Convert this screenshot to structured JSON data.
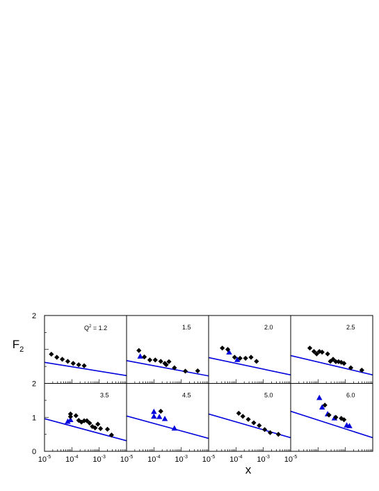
{
  "chart_data": {
    "type": "scatter",
    "layout": "2x4 grid of panels, shared log-x axis",
    "xlabel": "x",
    "ylabel": "F",
    "ylabel_subscript": "2",
    "xscale": "log",
    "xlim": [
      1e-05,
      0.01
    ],
    "ylim": [
      0,
      2
    ],
    "x_tick_labels": [
      "10",
      "10",
      "10",
      "10"
    ],
    "x_tick_exponents": [
      "-5",
      "-4",
      "-3",
      "-5"
    ],
    "y_tick_labels_top": [
      "2"
    ],
    "y_tick_labels_bottom": [
      "2",
      "1",
      "0"
    ],
    "colors": {
      "diamonds": "#000000",
      "triangles": "#0000dd",
      "curve": "#0000dd",
      "frame": "#000000"
    },
    "panels": [
      {
        "label_prefix": "Q",
        "label_sup": "2",
        "label": " = 1.2",
        "diamonds": [
          [
            1.78e-05,
            0.86
          ],
          [
            2.82e-05,
            0.77
          ],
          [
            4.47e-05,
            0.71
          ],
          [
            7.08e-05,
            0.65
          ],
          [
            0.000112,
            0.59
          ],
          [
            0.000178,
            0.55
          ],
          [
            0.000282,
            0.52
          ]
        ],
        "triangles": [],
        "curve": [
          [
            1e-05,
            0.62
          ],
          [
            0.01,
            0.23
          ]
        ]
      },
      {
        "label": "1.5",
        "diamonds": [
          [
            2.82e-05,
            0.97
          ],
          [
            4.47e-05,
            0.78
          ],
          [
            7.08e-05,
            0.69
          ],
          [
            0.000112,
            0.69
          ],
          [
            0.000178,
            0.65
          ],
          [
            0.000251,
            0.59
          ],
          [
            0.000282,
            0.55
          ],
          [
            0.000355,
            0.64
          ],
          [
            0.000562,
            0.46
          ],
          [
            0.00141,
            0.36
          ],
          [
            0.00398,
            0.37
          ]
        ],
        "triangles": [
          [
            3.16e-05,
            0.8
          ]
        ],
        "curve": [
          [
            1e-05,
            0.67
          ],
          [
            0.01,
            0.22
          ]
        ]
      },
      {
        "label": "2.0",
        "diamonds": [
          [
            3.16e-05,
            1.04
          ],
          [
            5.01e-05,
            1.0
          ],
          [
            8.91e-05,
            0.77
          ],
          [
            0.000141,
            0.74
          ],
          [
            0.000224,
            0.74
          ],
          [
            0.000355,
            0.77
          ],
          [
            0.000562,
            0.65
          ]
        ],
        "triangles": [
          [
            5.62e-05,
            0.92
          ],
          [
            0.000112,
            0.7
          ]
        ],
        "curve": [
          [
            1e-05,
            0.76
          ],
          [
            0.01,
            0.25
          ]
        ]
      },
      {
        "label": "2.5",
        "diamonds": [
          [
            5.01e-05,
            1.04
          ],
          [
            7.08e-05,
            0.94
          ],
          [
            8.91e-05,
            0.87
          ],
          [
            0.000112,
            0.94
          ],
          [
            0.000141,
            0.92
          ],
          [
            0.000224,
            0.87
          ],
          [
            0.000282,
            0.65
          ],
          [
            0.000355,
            0.71
          ],
          [
            0.000447,
            0.64
          ],
          [
            0.000562,
            0.64
          ],
          [
            0.000708,
            0.62
          ],
          [
            0.000891,
            0.59
          ],
          [
            0.00158,
            0.46
          ],
          [
            0.00398,
            0.39
          ]
        ],
        "triangles": [],
        "curve": [
          [
            1e-05,
            0.82
          ],
          [
            0.01,
            0.25
          ]
        ]
      },
      {
        "label": "3.5",
        "diamonds": [
          [
            8.91e-05,
            1.1
          ],
          [
            8.91e-05,
            1.02
          ],
          [
            0.000141,
            1.05
          ],
          [
            0.000178,
            0.91
          ],
          [
            0.000224,
            0.86
          ],
          [
            0.000282,
            0.9
          ],
          [
            0.000355,
            0.9
          ],
          [
            0.000447,
            0.83
          ],
          [
            0.000562,
            0.73
          ],
          [
            0.000708,
            0.69
          ],
          [
            0.000891,
            0.8
          ],
          [
            0.00112,
            0.67
          ],
          [
            0.002,
            0.65
          ],
          [
            0.00282,
            0.48
          ]
        ],
        "triangles": [
          [
            7.08e-05,
            0.88
          ],
          [
            8.91e-05,
            0.93
          ]
        ],
        "curve": [
          [
            1e-05,
            0.96
          ],
          [
            0.01,
            0.31
          ]
        ]
      },
      {
        "label": "4.5",
        "diamonds": [
          [
            0.000178,
            1.18
          ]
        ],
        "triangles": [
          [
            0.0001,
            1.17
          ],
          [
            0.0001,
            1.03
          ],
          [
            0.000158,
            1.02
          ],
          [
            0.000251,
            0.96
          ],
          [
            0.000562,
            0.68
          ]
        ],
        "curve": [
          [
            1e-05,
            1.04
          ],
          [
            0.01,
            0.38
          ]
        ]
      },
      {
        "label": "5.0",
        "diamonds": [
          [
            0.000126,
            1.12
          ],
          [
            0.000178,
            1.03
          ],
          [
            0.000282,
            0.94
          ],
          [
            0.000447,
            0.84
          ],
          [
            0.000708,
            0.76
          ],
          [
            0.00112,
            0.64
          ],
          [
            0.00178,
            0.55
          ],
          [
            0.00355,
            0.5
          ]
        ],
        "triangles": [],
        "curve": [
          [
            1e-05,
            1.1
          ],
          [
            0.01,
            0.4
          ]
        ]
      },
      {
        "label": "6.0",
        "diamonds": [
          [
            0.000178,
            1.36
          ],
          [
            0.000251,
            1.07
          ],
          [
            0.000447,
            1.0
          ],
          [
            0.000708,
            0.97
          ],
          [
            0.00089,
            0.93
          ]
        ],
        "triangles": [
          [
            0.000112,
            1.58
          ],
          [
            0.000141,
            1.3
          ],
          [
            0.000224,
            1.1
          ],
          [
            0.000398,
            0.98
          ],
          [
            0.00112,
            0.77
          ],
          [
            0.00141,
            0.75
          ]
        ],
        "curve": [
          [
            1e-05,
            1.18
          ],
          [
            0.01,
            0.4
          ]
        ]
      }
    ]
  }
}
